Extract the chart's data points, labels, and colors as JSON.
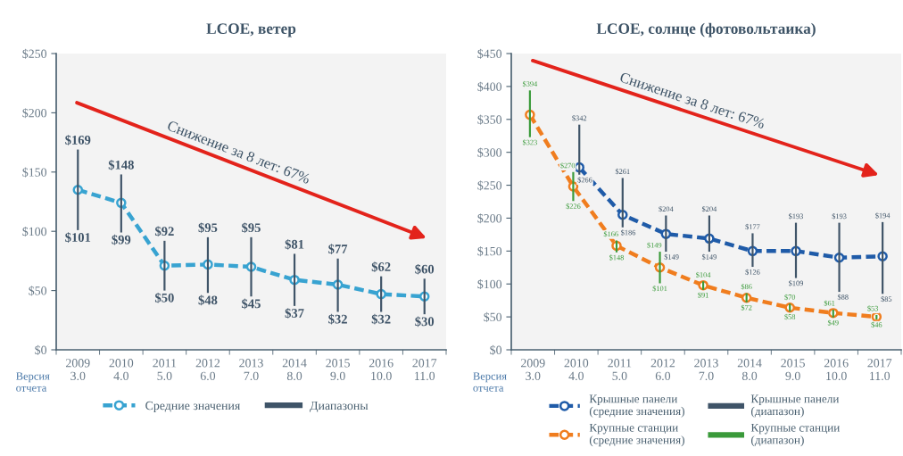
{
  "chart_data": [
    {
      "type": "line",
      "title": "LCOE, ветер",
      "xlabel": "Версия\nотчета",
      "categories": [
        "2009\n3.0",
        "2010\n4.0",
        "2011\n5.0",
        "2012\n6.0",
        "2013\n7.0",
        "2014\n8.0",
        "2015\n9.0",
        "2016\n10.0",
        "2017\n11.0"
      ],
      "ylim": [
        0,
        250
      ],
      "yticks": [
        {
          "value": 0,
          "label": "$0"
        },
        {
          "value": 50,
          "label": "$50"
        },
        {
          "value": 100,
          "label": "$100"
        },
        {
          "value": 150,
          "label": "$150"
        },
        {
          "value": 200,
          "label": "$200"
        },
        {
          "value": 250,
          "label": "$250"
        }
      ],
      "legend": "bottom",
      "marker": "circle",
      "line_style": "dashed",
      "series": [
        {
          "name": "Средние значения",
          "color": "#38a3d1",
          "values": [
            135,
            124,
            71,
            72,
            70,
            59,
            55,
            47,
            45
          ]
        },
        {
          "name": "Диапазоны",
          "type": "bar",
          "color": "#3f5468",
          "base": [
            101,
            99,
            50,
            48,
            45,
            37,
            32,
            32,
            30
          ],
          "values": [
            68,
            49,
            42,
            47,
            50,
            44,
            45,
            30,
            30
          ]
        }
      ],
      "annotations": [
        "Снижение за 8 лет: 67%",
        {
          "text": "$169",
          "x": "2009\n3.0",
          "y": 169
        },
        {
          "text": "$101",
          "x": "2009\n3.0",
          "y": 101
        },
        {
          "text": "$148",
          "x": "2010\n4.0",
          "y": 148
        },
        {
          "text": "$99",
          "x": "2010\n4.0",
          "y": 99
        },
        {
          "text": "$92",
          "x": "2011\n5.0",
          "y": 92
        },
        {
          "text": "$50",
          "x": "2011\n5.0",
          "y": 50
        },
        {
          "text": "$95",
          "x": "2012\n6.0",
          "y": 95
        },
        {
          "text": "$48",
          "x": "2012\n6.0",
          "y": 48
        },
        {
          "text": "$95",
          "x": "2013\n7.0",
          "y": 95
        },
        {
          "text": "$45",
          "x": "2013\n7.0",
          "y": 45
        },
        {
          "text": "$81",
          "x": "2014\n8.0",
          "y": 81
        },
        {
          "text": "$37",
          "x": "2014\n8.0",
          "y": 37
        },
        {
          "text": "$77",
          "x": "2015\n9.0",
          "y": 77
        },
        {
          "text": "$32",
          "x": "2015\n9.0",
          "y": 32
        },
        {
          "text": "$62",
          "x": "2016\n10.0",
          "y": 62
        },
        {
          "text": "$32",
          "x": "2016\n10.0",
          "y": 32
        },
        {
          "text": "$60",
          "x": "2017\n11.0",
          "y": 60
        },
        {
          "text": "$30",
          "x": "2017\n11.0",
          "y": 30
        }
      ]
    },
    {
      "type": "line",
      "title": "LCOE, солнце (фотовольтаика)",
      "xlabel": "Версия\nотчета",
      "categories": [
        "2009\n3.0",
        "2010\n4.0",
        "2011\n5.0",
        "2012\n6.0",
        "2013\n7.0",
        "2014\n8.0",
        "2015\n9.0",
        "2016\n10.0",
        "2017\n11.0"
      ],
      "ylim": [
        0,
        450
      ],
      "yticks": [
        {
          "value": 0,
          "label": "$0"
        },
        {
          "value": 50,
          "label": "$50"
        },
        {
          "value": 100,
          "label": "$100"
        },
        {
          "value": 150,
          "label": "$150"
        },
        {
          "value": 200,
          "label": "$200"
        },
        {
          "value": 250,
          "label": "$250"
        },
        {
          "value": 300,
          "label": "$300"
        },
        {
          "value": 350,
          "label": "$350"
        },
        {
          "value": 400,
          "label": "$400"
        },
        {
          "value": 450,
          "label": "$450"
        }
      ],
      "legend": "bottom",
      "marker": "circle",
      "line_style": "dashed",
      "series": [
        {
          "name": "Крышные панели\n(средние значения)",
          "color": "#1f5ba8",
          "values": [
            null,
            277,
            205,
            176,
            169,
            150,
            150,
            140,
            142
          ]
        },
        {
          "name": "Крупные станции\n(средние значения)",
          "color": "#f07d1e",
          "values": [
            357,
            248,
            158,
            125,
            98,
            79,
            64,
            56,
            50
          ]
        },
        {
          "name": "Крышные панели\n(диапазон)",
          "type": "bar",
          "color": "#3f5468",
          "base": [
            null,
            266,
            186,
            149,
            149,
            126,
            109,
            88,
            85
          ],
          "values": [
            null,
            76,
            75,
            55,
            55,
            51,
            84,
            105,
            109
          ]
        },
        {
          "name": "Крупные станции\n(диапазон)",
          "type": "bar",
          "color": "#3a9a3a",
          "base": [
            323,
            226,
            148,
            101,
            91,
            72,
            58,
            49,
            46
          ],
          "values": [
            71,
            44,
            18,
            48,
            13,
            14,
            12,
            12,
            7
          ]
        }
      ],
      "annotations": [
        "Снижение за 8 лет: 67%",
        {
          "text": "$342",
          "x": "2010\n4.0",
          "y": 342
        },
        {
          "text": "$266",
          "x": "2010\n4.0",
          "y": 266
        },
        {
          "text": "$261",
          "x": "2011\n5.0",
          "y": 261
        },
        {
          "text": "$186",
          "x": "2011\n5.0",
          "y": 186
        },
        {
          "text": "$204",
          "x": "2012\n6.0",
          "y": 204
        },
        {
          "text": "$149",
          "x": "2012\n6.0",
          "y": 149
        },
        {
          "text": "$204",
          "x": "2013\n7.0",
          "y": 204
        },
        {
          "text": "$149",
          "x": "2013\n7.0",
          "y": 149
        },
        {
          "text": "$177",
          "x": "2014\n8.0",
          "y": 177
        },
        {
          "text": "$126",
          "x": "2014\n8.0",
          "y": 126
        },
        {
          "text": "$193",
          "x": "2015\n9.0",
          "y": 193
        },
        {
          "text": "$109",
          "x": "2015\n9.0",
          "y": 109
        },
        {
          "text": "$193",
          "x": "2016\n10.0",
          "y": 193
        },
        {
          "text": "$88",
          "x": "2016\n10.0",
          "y": 88
        },
        {
          "text": "$194",
          "x": "2017\n11.0",
          "y": 194
        },
        {
          "text": "$85",
          "x": "2017\n11.0",
          "y": 85
        },
        {
          "text": "$394",
          "x": "2009\n3.0",
          "y": 394
        },
        {
          "text": "$323",
          "x": "2009\n3.0",
          "y": 323
        },
        {
          "text": "$270",
          "x": "2010\n4.0",
          "y": 270
        },
        {
          "text": "$226",
          "x": "2010\n4.0",
          "y": 226
        },
        {
          "text": "$166",
          "x": "2011\n5.0",
          "y": 166
        },
        {
          "text": "$148",
          "x": "2011\n5.0",
          "y": 148
        },
        {
          "text": "$149",
          "x": "2012\n6.0",
          "y": 149
        },
        {
          "text": "$101",
          "x": "2012\n6.0",
          "y": 101
        },
        {
          "text": "$104",
          "x": "2013\n7.0",
          "y": 104
        },
        {
          "text": "$91",
          "x": "2013\n7.0",
          "y": 91
        },
        {
          "text": "$86",
          "x": "2014\n8.0",
          "y": 86
        },
        {
          "text": "$72",
          "x": "2014\n8.0",
          "y": 72
        },
        {
          "text": "$70",
          "x": "2015\n9.0",
          "y": 70
        },
        {
          "text": "$58",
          "x": "2015\n9.0",
          "y": 58
        },
        {
          "text": "$61",
          "x": "2016\n10.0",
          "y": 61
        },
        {
          "text": "$49",
          "x": "2016\n10.0",
          "y": 49
        },
        {
          "text": "$53",
          "x": "2017\n11.0",
          "y": 53
        },
        {
          "text": "$46",
          "x": "2017\n11.0",
          "y": 46
        }
      ]
    }
  ]
}
